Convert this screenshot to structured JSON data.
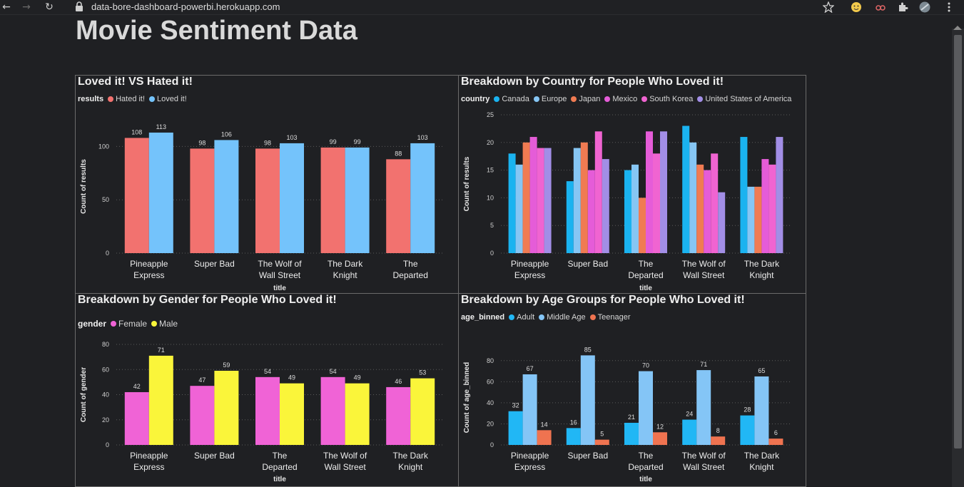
{
  "browser": {
    "url": "data-bore-dashboard-powerbi.herokuapp.com"
  },
  "page": {
    "title": "Movie Sentiment Data"
  },
  "charts": {
    "p1": {
      "title": "Loved it! VS Hated it!",
      "legend_title": "results",
      "chart_data": {
        "type": "bar",
        "categories": [
          "Pineapple Express",
          "Super Bad",
          "The Wolf of Wall Street",
          "The Dark Knight",
          "The Departed"
        ],
        "series": [
          {
            "name": "Hated it!",
            "color": "#f2726f",
            "values": [
              108,
              98,
              98,
              99,
              88
            ]
          },
          {
            "name": "Loved it!",
            "color": "#74c3fb",
            "values": [
              113,
              106,
              103,
              99,
              103
            ]
          }
        ],
        "xlabel": "title",
        "ylabel": "Count of results",
        "ylim": [
          0,
          125
        ],
        "yticks": [
          0,
          50,
          100
        ],
        "data_labels": true,
        "grid": true
      }
    },
    "p2": {
      "title": "Breakdown by Country for People Who Loved it!",
      "legend_title": "country",
      "chart_data": {
        "type": "bar",
        "categories": [
          "Pineapple Express",
          "Super Bad",
          "The Departed",
          "The Wolf of Wall Street",
          "The Dark Knight"
        ],
        "series": [
          {
            "name": "Canada",
            "color": "#1ab3f0",
            "values": [
              18,
              13,
              15,
              23,
              21
            ]
          },
          {
            "name": "Europe",
            "color": "#86c6f4",
            "values": [
              16,
              19,
              16,
              20,
              12
            ]
          },
          {
            "name": "Japan",
            "color": "#f07b52",
            "values": [
              20,
              20,
              10,
              16,
              12
            ]
          },
          {
            "name": "Mexico",
            "color": "#e55cd8",
            "values": [
              21,
              15,
              22,
              15,
              17
            ]
          },
          {
            "name": "South Korea",
            "color": "#f064d1",
            "values": [
              19,
              22,
              18,
              18,
              16
            ]
          },
          {
            "name": "United States of America",
            "color": "#a28ee6",
            "values": [
              19,
              17,
              22,
              11,
              21
            ]
          }
        ],
        "xlabel": "title",
        "ylabel": "Count of results",
        "ylim": [
          0,
          25
        ],
        "yticks": [
          0,
          5,
          10,
          15,
          20,
          25
        ],
        "data_labels": false,
        "grid": true
      }
    },
    "p3": {
      "title": "Breakdown by Gender for People Who Loved it!",
      "legend_title": "gender",
      "chart_data": {
        "type": "bar",
        "categories": [
          "Pineapple Express",
          "Super Bad",
          "The Departed",
          "The Wolf of Wall Street",
          "The Dark Knight"
        ],
        "series": [
          {
            "name": "Female",
            "color": "#f063d6",
            "values": [
              42,
              47,
              54,
              54,
              46
            ]
          },
          {
            "name": "Male",
            "color": "#faf53a",
            "values": [
              71,
              59,
              49,
              49,
              53
            ]
          }
        ],
        "xlabel": "title",
        "ylabel": "Count of gender",
        "ylim": [
          0,
          80
        ],
        "yticks": [
          0,
          20,
          40,
          60,
          80
        ],
        "data_labels": true,
        "grid": true
      }
    },
    "p4": {
      "title": "Breakdown by Age Groups for People Who Loved it!",
      "legend_title": "age_binned",
      "chart_data": {
        "type": "bar",
        "categories": [
          "Pineapple Express",
          "Super Bad",
          "The Departed",
          "The Wolf of Wall Street",
          "The Dark Knight"
        ],
        "series": [
          {
            "name": "Adult",
            "color": "#21b7f5",
            "values": [
              32,
              16,
              21,
              24,
              28
            ]
          },
          {
            "name": "Middle Age",
            "color": "#84c5f6",
            "values": [
              67,
              85,
              70,
              71,
              65
            ]
          },
          {
            "name": "Teenager",
            "color": "#ef7350",
            "values": [
              14,
              5,
              12,
              8,
              6
            ]
          }
        ],
        "xlabel": "title",
        "ylabel": "Count of age_binned",
        "ylim": [
          0,
          90
        ],
        "yticks": [
          0,
          20,
          40,
          60,
          80
        ],
        "data_labels": true,
        "grid": true
      }
    }
  }
}
